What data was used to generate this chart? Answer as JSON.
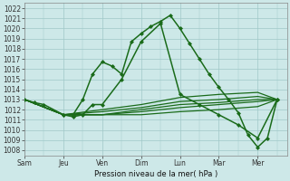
{
  "title": "Pression niveau de la mer( hPa )",
  "ylim": [
    1007.5,
    1022.5
  ],
  "yticks": [
    1008,
    1009,
    1010,
    1011,
    1012,
    1013,
    1014,
    1015,
    1016,
    1017,
    1018,
    1019,
    1020,
    1021,
    1022
  ],
  "xtick_labels": [
    "Sam",
    "Jeu",
    "Ven",
    "Dim",
    "Lun",
    "Mar",
    "Mer"
  ],
  "xtick_positions": [
    0,
    2,
    4,
    6,
    8,
    10,
    12
  ],
  "xlim": [
    0,
    13.5
  ],
  "bg_color": "#cde8e8",
  "grid_color": "#a0c8c8",
  "line_color": "#1a6b1a",
  "lines": [
    {
      "x": [
        0,
        0.5,
        1,
        2,
        2.5,
        3,
        3.5,
        4,
        4.5,
        5,
        5.5,
        6,
        6.5,
        7,
        7.5,
        8,
        8.5,
        9,
        9.5,
        10,
        10.5,
        11,
        11.5,
        12,
        12.5,
        13
      ],
      "y": [
        1013,
        1012.7,
        1012.5,
        1011.5,
        1011.5,
        1013.0,
        1015.5,
        1016.7,
        1016.3,
        1015.5,
        1018.7,
        1019.5,
        1020.2,
        1020.7,
        1021.3,
        1020.0,
        1018.5,
        1017.0,
        1015.5,
        1014.2,
        1013.0,
        1011.7,
        1009.5,
        1008.3,
        1009.2,
        1013.0
      ],
      "marker": "D",
      "ms": 2.0,
      "lw": 1.1,
      "marked_x": [
        0,
        2,
        3.5,
        4,
        5.5,
        6,
        7,
        7.5,
        8,
        9,
        10,
        11,
        11.5,
        12,
        12.5,
        13
      ]
    },
    {
      "x": [
        2,
        2.5,
        3,
        3.5,
        4,
        5,
        6,
        7,
        8,
        9,
        10,
        11,
        12,
        13
      ],
      "y": [
        1011.5,
        1011.3,
        1011.5,
        1012.5,
        1012.5,
        1015.0,
        1018.7,
        1020.5,
        1013.5,
        1012.5,
        1011.5,
        1010.5,
        1009.2,
        1013.0
      ],
      "marker": "D",
      "ms": 2.0,
      "lw": 1.1
    },
    {
      "x": [
        0,
        2,
        4,
        6,
        8,
        10,
        12,
        13
      ],
      "y": [
        1013.0,
        1011.5,
        1012.0,
        1012.5,
        1013.2,
        1013.5,
        1013.7,
        1013.0
      ],
      "marker": null,
      "ms": 0,
      "lw": 0.9
    },
    {
      "x": [
        0,
        2,
        4,
        6,
        8,
        10,
        12,
        13
      ],
      "y": [
        1013.0,
        1011.5,
        1011.8,
        1012.2,
        1012.8,
        1013.0,
        1013.3,
        1013.0
      ],
      "marker": null,
      "ms": 0,
      "lw": 0.9
    },
    {
      "x": [
        0,
        2,
        4,
        6,
        8,
        10,
        12,
        13
      ],
      "y": [
        1013.0,
        1011.5,
        1011.5,
        1012.0,
        1012.5,
        1012.7,
        1013.0,
        1013.0
      ],
      "marker": null,
      "ms": 0,
      "lw": 0.9
    },
    {
      "x": [
        0,
        2,
        4,
        6,
        8,
        10,
        12,
        13
      ],
      "y": [
        1013.0,
        1011.5,
        1011.5,
        1011.8,
        1012.2,
        1012.5,
        1012.8,
        1013.0
      ],
      "marker": null,
      "ms": 0,
      "lw": 0.9
    },
    {
      "x": [
        0,
        2,
        4,
        6,
        8,
        10,
        12,
        13
      ],
      "y": [
        1013.0,
        1011.5,
        1011.5,
        1011.5,
        1011.8,
        1012.0,
        1012.3,
        1013.0
      ],
      "marker": null,
      "ms": 0,
      "lw": 0.9
    }
  ]
}
